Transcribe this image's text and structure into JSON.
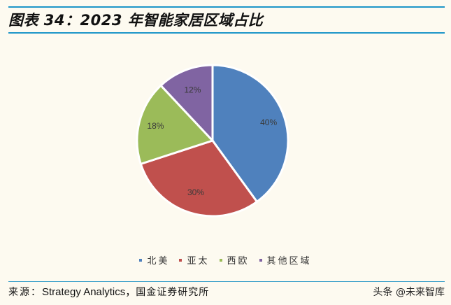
{
  "title": "图表 34：2023 年智能家居区域占比",
  "chart_data": {
    "type": "pie",
    "title": "2023 年智能家居区域占比",
    "categories": [
      "北美",
      "亚太",
      "西欧",
      "其他区域"
    ],
    "values": [
      40,
      30,
      18,
      12
    ],
    "labels": [
      "40%",
      "30%",
      "18%",
      "12%"
    ],
    "colors": [
      "#4f81bd",
      "#c0504d",
      "#9bbb59",
      "#8064a2"
    ],
    "start_angle": "12 o'clock",
    "direction": "clockwise",
    "legend_position": "bottom"
  },
  "legend": [
    {
      "label": "北美",
      "color": "#4f81bd"
    },
    {
      "label": "亚太",
      "color": "#c0504d"
    },
    {
      "label": "西欧",
      "color": "#9bbb59"
    },
    {
      "label": "其他区域",
      "color": "#8064a2"
    }
  ],
  "footer": {
    "source_label": "来源：",
    "source_text": "Strategy Analytics，",
    "source_org": "国金证券研究所",
    "watermark": "头条 @未来智库"
  }
}
